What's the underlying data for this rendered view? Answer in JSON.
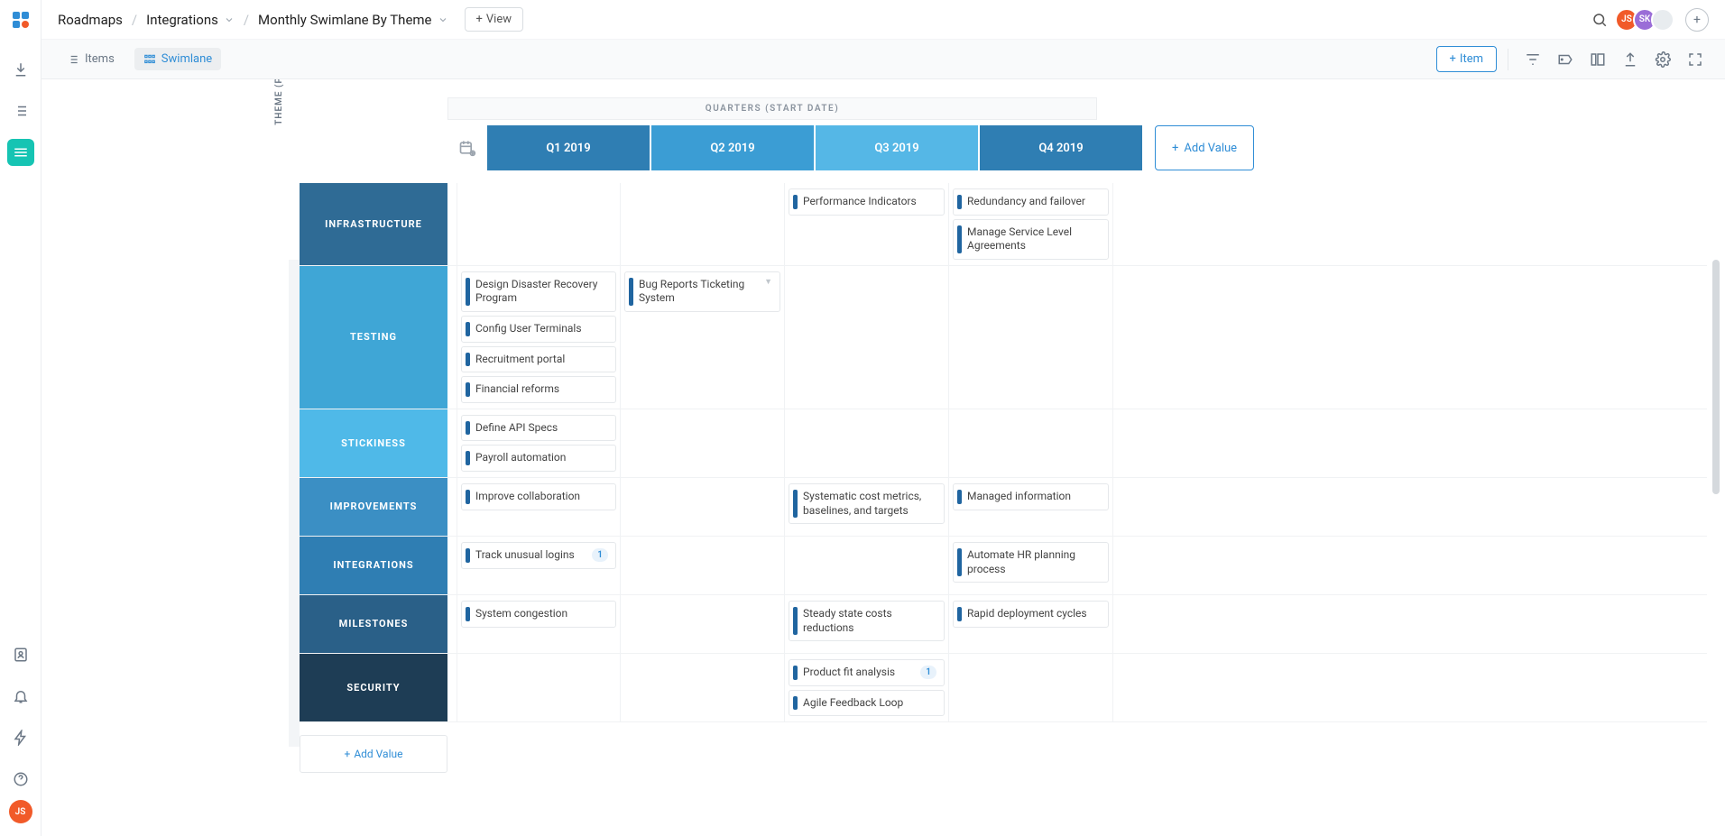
{
  "breadcrumb": {
    "root": "Roadmaps",
    "mid": "Integrations",
    "leaf": "Monthly Swimlane By Theme"
  },
  "view_btn": "View",
  "header_avatars": [
    {
      "initials": "JS",
      "color": "#f15a29"
    },
    {
      "initials": "SK",
      "color": "#9a6dd7"
    },
    {
      "initials": "",
      "color": "#e8ecef"
    }
  ],
  "view_toggle": {
    "items": "Items",
    "swimlane": "Swimlane"
  },
  "add_item_btn": "Item",
  "timeline_title": "QUARTERS (START DATE)",
  "quarters": [
    {
      "label": "Q1 2019",
      "color": "#2f7eb3"
    },
    {
      "label": "Q2 2019",
      "color": "#3b9dd4"
    },
    {
      "label": "Q3 2019",
      "color": "#55b7e6"
    },
    {
      "label": "Q4 2019",
      "color": "#2f7eb3"
    }
  ],
  "add_value_btn": "Add Value",
  "axis_label": "THEME (PRODUCT ROADMAP)",
  "accent_bar": "#2065a0",
  "lanes": [
    {
      "name": "INFRASTRUCTURE",
      "color": "#2f6b95",
      "cells": [
        [],
        [],
        [
          {
            "text": "Performance Indicators"
          }
        ],
        [
          {
            "text": "Redundancy and failover"
          },
          {
            "text": "Manage Service Level Agreements"
          }
        ]
      ]
    },
    {
      "name": "TESTING",
      "color": "#3fa6d6",
      "cells": [
        [
          {
            "text": "Design Disaster Recovery Program"
          },
          {
            "text": "Config User Terminals"
          },
          {
            "text": "Recruitment portal"
          },
          {
            "text": "Financial reforms"
          }
        ],
        [
          {
            "text": "Bug Reports Ticketing System",
            "caret": true
          }
        ],
        [],
        []
      ]
    },
    {
      "name": "STICKINESS",
      "color": "#4fb9e8",
      "cells": [
        [
          {
            "text": "Define API Specs"
          },
          {
            "text": "Payroll automation"
          }
        ],
        [],
        [],
        []
      ]
    },
    {
      "name": "IMPROVEMENTS",
      "color": "#3b8fc4",
      "cells": [
        [
          {
            "text": "Improve collaboration"
          }
        ],
        [],
        [
          {
            "text": "Systematic cost metrics, baselines, and targets"
          }
        ],
        [
          {
            "text": "Managed information"
          }
        ]
      ]
    },
    {
      "name": "INTEGRATIONS",
      "color": "#2f7eb3",
      "cells": [
        [
          {
            "text": "Track unusual logins",
            "badge": "1"
          }
        ],
        [],
        [],
        [
          {
            "text": "Automate HR planning process"
          }
        ]
      ]
    },
    {
      "name": "MILESTONES",
      "color": "#2a6088",
      "cells": [
        [
          {
            "text": "System congestion"
          }
        ],
        [],
        [
          {
            "text": "Steady state costs reductions"
          }
        ],
        [
          {
            "text": "Rapid deployment cycles"
          }
        ]
      ]
    },
    {
      "name": "SECURITY",
      "color": "#1e3d55",
      "cells": [
        [],
        [],
        [
          {
            "text": "Product fit analysis",
            "badge": "1"
          },
          {
            "text": "Agile Feedback Loop"
          }
        ],
        []
      ]
    }
  ],
  "lane_add_value": "Add Value",
  "rail_avatar": "JS"
}
